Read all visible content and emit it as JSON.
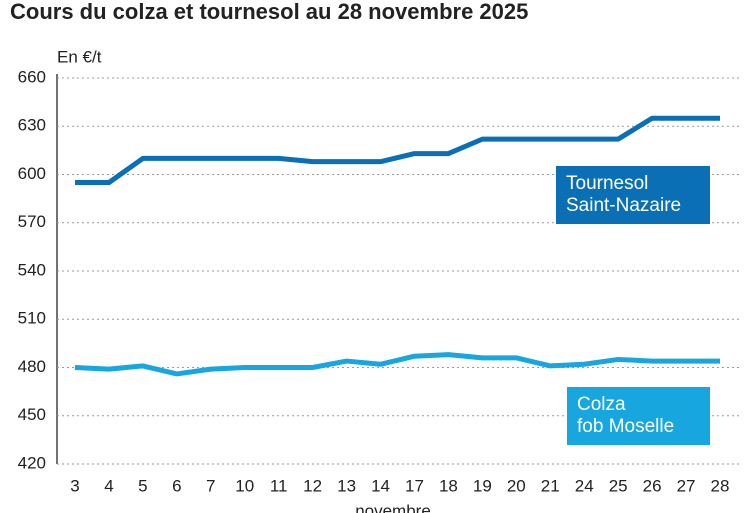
{
  "chart_data": {
    "type": "line",
    "title": "Cours du colza et tournesol au 28 novembre 2025",
    "y_label": "En €/t",
    "x_label": "novembre",
    "categories": [
      "3",
      "4",
      "5",
      "6",
      "7",
      "10",
      "11",
      "12",
      "13",
      "14",
      "17",
      "18",
      "19",
      "20",
      "21",
      "24",
      "25",
      "26",
      "27",
      "28"
    ],
    "series": [
      {
        "name": "Tournesol\nSaint-Nazaire",
        "color": "#0b6fb6",
        "values": [
          595,
          595,
          610,
          610,
          610,
          610,
          610,
          608,
          608,
          608,
          613,
          613,
          622,
          622,
          622,
          622,
          622,
          635,
          635,
          635
        ]
      },
      {
        "name": "Colza\nfob Moselle",
        "color": "#17a6de",
        "values": [
          480,
          479,
          481,
          476,
          479,
          480,
          480,
          480,
          484,
          482,
          487,
          488,
          486,
          486,
          481,
          482,
          485,
          484,
          484,
          484
        ]
      }
    ],
    "ylim": [
      420,
      660
    ],
    "yticks": [
      420,
      450,
      480,
      510,
      540,
      570,
      600,
      630,
      660
    ],
    "grid": true
  }
}
